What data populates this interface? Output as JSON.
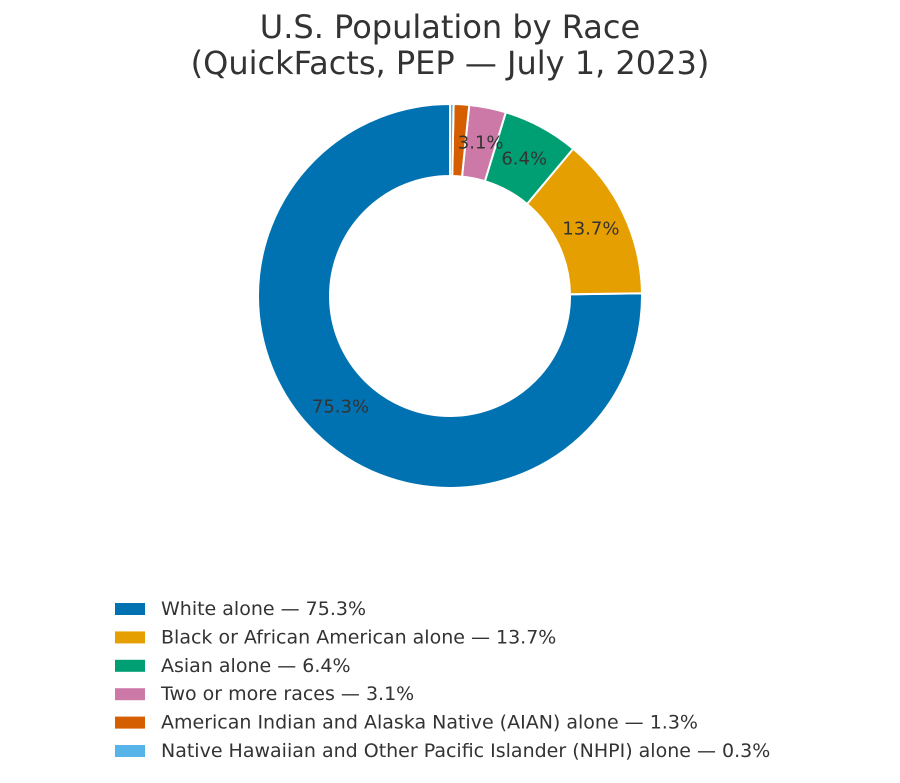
{
  "chart_data": {
    "type": "pie",
    "style": "donut",
    "title": [
      "U.S. Population by Race",
      "(QuickFacts, PEP — July 1, 2023)"
    ],
    "slices": [
      {
        "label": "White alone",
        "value": 75.3,
        "value_label": "75.3%",
        "legend": "White alone — 75.3%",
        "color": "#0072B2",
        "show_label": true
      },
      {
        "label": "Black or African American alone",
        "value": 13.7,
        "value_label": "13.7%",
        "legend": "Black or African American alone — 13.7%",
        "color": "#E69F00",
        "show_label": true
      },
      {
        "label": "Asian alone",
        "value": 6.4,
        "value_label": "6.4%",
        "legend": "Asian alone — 6.4%",
        "color": "#009E73",
        "show_label": true
      },
      {
        "label": "Two or more races",
        "value": 3.1,
        "value_label": "3.1%",
        "legend": "Two or more races — 3.1%",
        "color": "#CC79A7",
        "show_label": true
      },
      {
        "label": "American Indian and Alaska Native (AIAN) alone",
        "value": 1.3,
        "value_label": "1.3%",
        "legend": "American Indian and Alaska Native (AIAN) alone — 1.3%",
        "color": "#D55E00",
        "show_label": false
      },
      {
        "label": "Native Hawaiian and Other Pacific Islander (NHPI) alone",
        "value": 0.3,
        "value_label": "0.3%",
        "legend": "Native Hawaiian and Other Pacific Islander (NHPI) alone — 0.3%",
        "color": "#56B4E9",
        "show_label": false
      }
    ],
    "legend_position": "bottom",
    "direction": "counterclockwise",
    "start": "top"
  }
}
